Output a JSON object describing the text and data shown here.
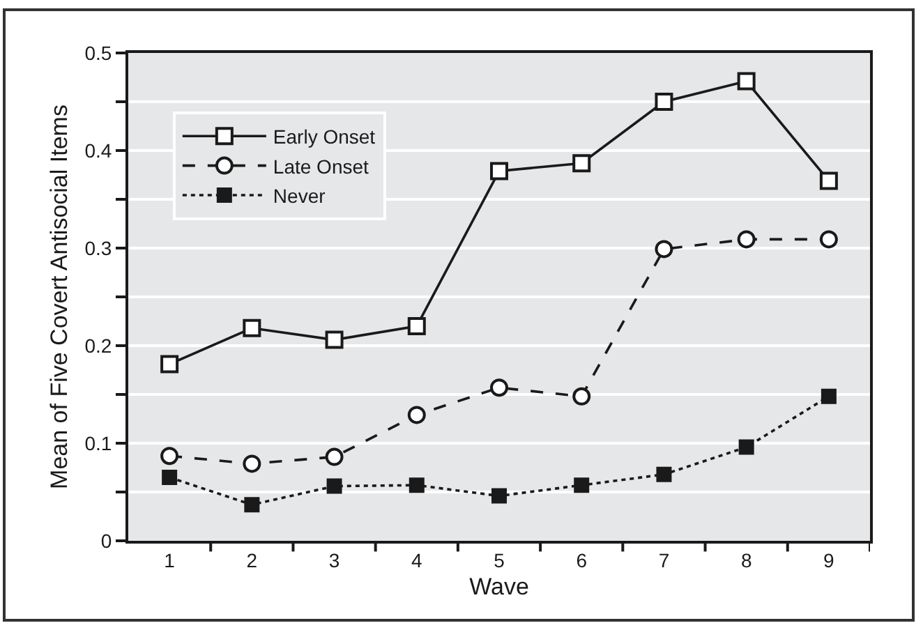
{
  "chart_data": {
    "type": "line",
    "xlabel": "Wave",
    "ylabel": "Mean of Five Covert Antisocial Items",
    "categories": [
      "1",
      "2",
      "3",
      "4",
      "5",
      "6",
      "7",
      "8",
      "9"
    ],
    "series": [
      {
        "name": "Early Onset",
        "color": "#1a1a1a",
        "marker": "square",
        "line_style": "solid",
        "values": [
          0.181,
          0.218,
          0.206,
          0.22,
          0.379,
          0.387,
          0.45,
          0.471,
          0.369
        ]
      },
      {
        "name": "Late Onset",
        "color": "#1a1a1a",
        "marker": "circle",
        "line_style": "dashed",
        "values": [
          0.087,
          0.079,
          0.086,
          0.129,
          0.157,
          0.148,
          0.299,
          0.309,
          0.309
        ]
      },
      {
        "name": "Never",
        "color": "#1a1a1a",
        "marker": "square",
        "line_style": "dotted",
        "values": [
          0.065,
          0.037,
          0.056,
          0.057,
          0.046,
          0.057,
          0.068,
          0.096,
          0.148
        ]
      }
    ],
    "ylim": [
      0,
      0.5
    ],
    "yticks": [
      0,
      {
        "value": 0.05,
        "label": null
      },
      0.1,
      {
        "value": 0.15,
        "label": null
      },
      0.2,
      {
        "value": 0.25,
        "label": null
      },
      0.3,
      {
        "value": 0.35,
        "label": null
      },
      0.4,
      {
        "value": 0.45,
        "label": null
      },
      0.5
    ],
    "grid": "y",
    "legend": "top left"
  }
}
